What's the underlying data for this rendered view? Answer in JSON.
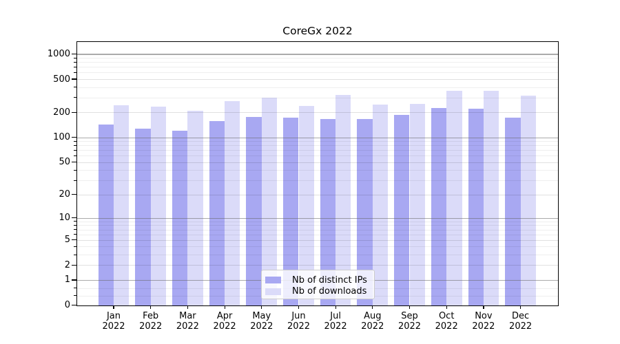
{
  "chart_data": {
    "type": "bar",
    "title": "CoreGx 2022",
    "categories": [
      "Jan",
      "Feb",
      "Mar",
      "Apr",
      "May",
      "Jun",
      "Jul",
      "Aug",
      "Sep",
      "Oct",
      "Nov",
      "Dec"
    ],
    "category_year": "2022",
    "series": [
      {
        "name": "Nb of distinct IPs",
        "color": "#a8a8f2",
        "values": [
          142,
          127,
          120,
          157,
          176,
          173,
          165,
          166,
          185,
          224,
          220,
          173
        ]
      },
      {
        "name": "Nb of downloads",
        "color": "#dbdbf9",
        "values": [
          244,
          235,
          210,
          273,
          302,
          237,
          324,
          247,
          252,
          359,
          363,
          320
        ]
      }
    ],
    "yscale": "log1p",
    "ylim": [
      0,
      1390
    ],
    "y_major_ticks": [
      1000,
      500,
      200,
      100,
      50,
      20,
      10,
      5,
      2,
      1,
      0
    ],
    "y_minor_ticks": [
      900,
      800,
      700,
      600,
      400,
      300,
      90,
      80,
      70,
      60,
      40,
      30,
      9,
      8,
      7,
      6,
      4,
      3,
      0.6,
      0.3
    ],
    "grid": true,
    "legend_position": "lower center",
    "style": {
      "background": "#ffffff",
      "spine_color": "#000000",
      "decade_grid_color": "rgba(100,100,100,0.55)",
      "major_grid_color": "rgba(0,0,0,0.12)",
      "minor_grid_color": "rgba(0,0,0,0.065)"
    }
  }
}
